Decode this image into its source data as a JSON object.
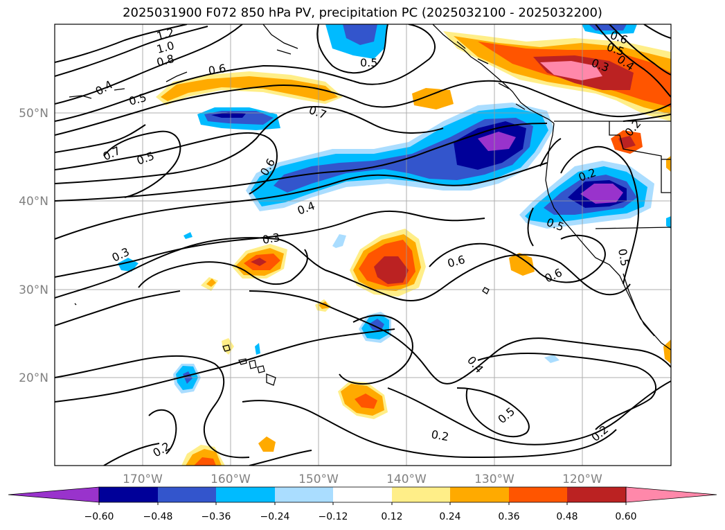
{
  "title": "2025031900 F072 850 hPa PV, precipitation PC (2025032100 - 2025032200)",
  "map": {
    "lon_range": [
      -180,
      -110
    ],
    "lat_range": [
      10,
      60
    ],
    "lat_labels": [
      "20°N",
      "30°N",
      "40°N",
      "50°N"
    ],
    "lon_labels": [
      "170°W",
      "160°W",
      "150°W",
      "140°W",
      "130°W",
      "120°W"
    ],
    "gridlines": true
  },
  "contour_labels": [
    "1.2",
    "1.0",
    "0.8",
    "0.6",
    "0.5",
    "0.4",
    "0.5",
    "0.7",
    "0.7",
    "0.5",
    "0.6",
    "0.4",
    "0.3",
    "0.3",
    "0.6",
    "0.6",
    "0.4",
    "0.5",
    "0.2",
    "0.2",
    "0.2",
    "0.5",
    "0.6",
    "0.5",
    "0.4",
    "0.3",
    "0.2",
    "0.2",
    "0.5"
  ],
  "colorbar": {
    "ticks": [
      "−0.60",
      "−0.48",
      "−0.36",
      "−0.24",
      "−0.12",
      "0.12",
      "0.24",
      "0.36",
      "0.48",
      "0.60"
    ],
    "colors": [
      "#9933cc",
      "#000099",
      "#3355cc",
      "#00bbff",
      "#aaddff",
      "#ffffff",
      "#ffee88",
      "#ffaa00",
      "#ff5500",
      "#bb2222",
      "#ff88aa"
    ],
    "extend": "both"
  },
  "colors": {
    "land_outline": "#000000",
    "grid": "#999999",
    "label": "#808080"
  }
}
